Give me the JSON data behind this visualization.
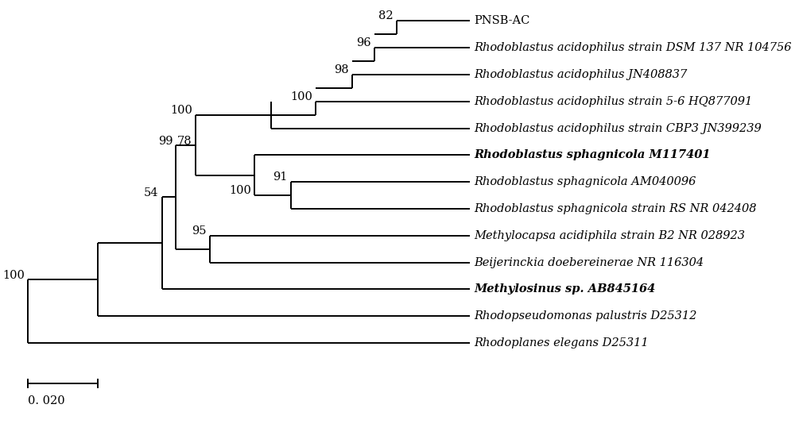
{
  "figsize": [
    10.0,
    5.53
  ],
  "dpi": 100,
  "bg_color": "#ffffff",
  "line_color": "#000000",
  "line_width": 1.4,
  "font_size": 10.5,
  "scalebar_label": "0. 020",
  "taxa": [
    "PNSB-AC",
    "Rhodoblastus acidophilus strain DSM 137 NR 104756",
    "Rhodoblastus acidophilus JN408837",
    "Rhodoblastus acidophilus strain 5-6 HQ877091",
    "Rhodoblastus acidophilus strain CBP3 JN399239",
    "Rhodoblastus sphagnicola M117401",
    "Rhodoblastus sphagnicola AM040096",
    "Rhodoblastus sphagnicola strain RS NR 042408",
    "Methylocapsa acidiphila strain B2 NR 028923",
    "Beijerinckia doebereinerae NR 116304",
    "Methylosinus sp. AB845164",
    "Rhodopseudomonas palustris D25312",
    "Rhodoplanes elegans D25311"
  ],
  "taxa_style": [
    {
      "bold": false,
      "italic": false
    },
    {
      "bold": false,
      "italic": true
    },
    {
      "bold": false,
      "italic": true
    },
    {
      "bold": false,
      "italic": true
    },
    {
      "bold": false,
      "italic": true
    },
    {
      "bold": true,
      "italic": true
    },
    {
      "bold": false,
      "italic": true
    },
    {
      "bold": false,
      "italic": true
    },
    {
      "bold": false,
      "italic": true
    },
    {
      "bold": false,
      "italic": true
    },
    {
      "bold": true,
      "italic": true
    },
    {
      "bold": false,
      "italic": true
    },
    {
      "bold": false,
      "italic": true
    }
  ]
}
